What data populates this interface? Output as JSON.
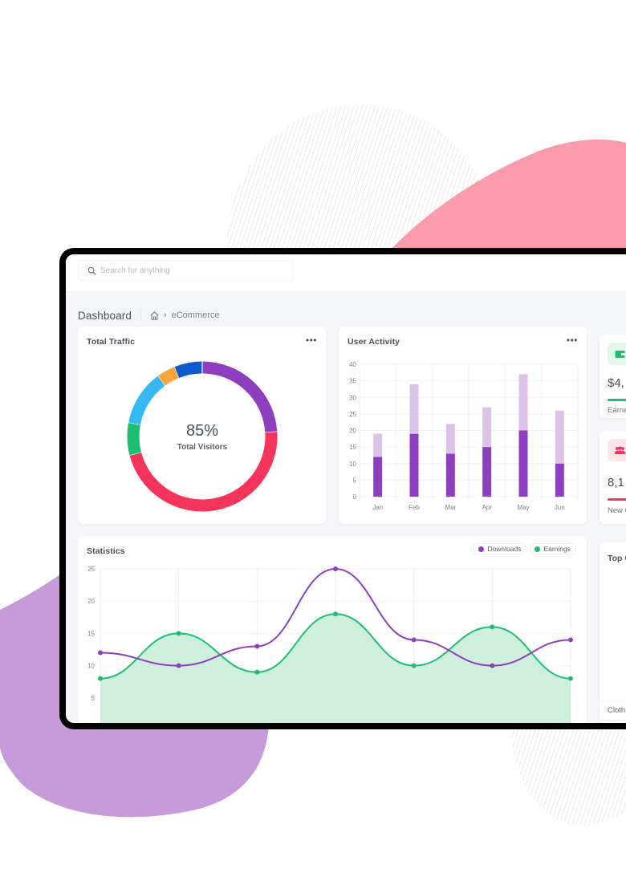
{
  "search": {
    "placeholder": "Search for anything",
    "icon": "search-icon"
  },
  "breadcrumb": {
    "title": "Dashboard",
    "home_icon": "home-icon",
    "separator_icon": "chevron-right-icon",
    "current": "eCommerce"
  },
  "cards": {
    "total_traffic": {
      "title": "Total Traffic",
      "menu_icon": "more-horizontal-icon",
      "center_value": "85%",
      "center_label": "Total Visitors"
    },
    "user_activity": {
      "title": "User Activity",
      "menu_icon": "more-horizontal-icon"
    },
    "statistics": {
      "title": "Statistics",
      "legend": [
        {
          "label": "Downloads",
          "color": "#8e3fbf"
        },
        {
          "label": "Earnings",
          "color": "#1dbf73"
        }
      ]
    },
    "earnings_stat": {
      "icon": "wallet-icon",
      "value": "$4,",
      "label": "Earne",
      "color": "#1dbf73",
      "icon_bg": "#e3f7ec"
    },
    "customers_stat": {
      "icon": "users-icon",
      "value": "8,1",
      "label": "New C",
      "color": "#f4345a",
      "icon_bg": "#fde6ea"
    },
    "top_categories": {
      "title": "Top C",
      "row_label": "Cloth"
    }
  },
  "colors": {
    "purple": "#8e3fbf",
    "purple_light": "#dcc1e9",
    "green": "#1dbf73",
    "green_fill": "#cdefdc",
    "red": "#f4345a",
    "sky": "#35b8f4",
    "orange": "#f9a43d",
    "blue": "#0b5bcd",
    "blob_pink": "#f99bab",
    "blob_purple": "#c79bda"
  },
  "chart_data": [
    {
      "type": "pie",
      "title": "Total Traffic",
      "donut": true,
      "center_text": "85%",
      "center_subtext": "Total Visitors",
      "slices": [
        {
          "color": "#8e3fbf",
          "value": 24
        },
        {
          "color": "#f4345a",
          "value": 47
        },
        {
          "color": "#1dbf73",
          "value": 7
        },
        {
          "color": "#35b8f4",
          "value": 12
        },
        {
          "color": "#f9a43d",
          "value": 4
        },
        {
          "color": "#0b5bcd",
          "value": 6
        }
      ]
    },
    {
      "type": "bar",
      "stacked": true,
      "title": "User Activity",
      "categories": [
        "Jan",
        "Feb",
        "Mar",
        "Apr",
        "May",
        "Jun"
      ],
      "series": [
        {
          "name": "dark",
          "color": "#8e3fbf",
          "values": [
            12,
            19,
            13,
            15,
            20,
            10
          ]
        },
        {
          "name": "light",
          "color": "#dcc1e9",
          "values": [
            7,
            15,
            9,
            12,
            17,
            16
          ]
        }
      ],
      "yticks": [
        0,
        5,
        10,
        15,
        20,
        25,
        30,
        35,
        40
      ],
      "ylim": [
        0,
        40
      ],
      "grid": true
    },
    {
      "type": "area",
      "title": "Statistics",
      "x": [
        1,
        2,
        3,
        4,
        5,
        6,
        7
      ],
      "series": [
        {
          "name": "Downloads",
          "color": "#8e3fbf",
          "fill": false,
          "values": [
            12,
            10,
            13,
            25,
            14,
            10,
            14
          ]
        },
        {
          "name": "Earnings",
          "color": "#1dbf73",
          "fill": true,
          "values": [
            8,
            15,
            9,
            18,
            10,
            16,
            8
          ]
        }
      ],
      "yticks": [
        5,
        10,
        15,
        20,
        25
      ],
      "ylim": [
        0,
        25
      ],
      "legend_position": "top-right",
      "grid": true
    }
  ]
}
